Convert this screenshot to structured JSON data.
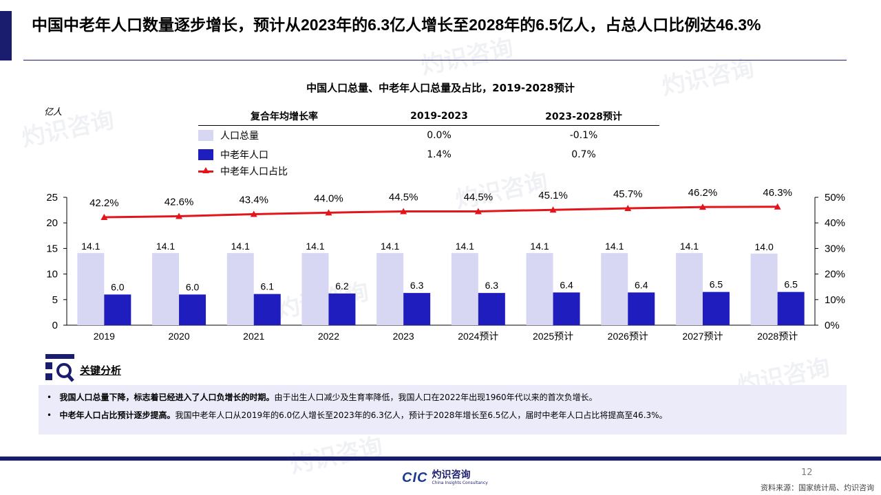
{
  "headline": "中国中老年人口数量逐步增长，预计从2023年的6.3亿人增长至2028年的6.5亿人，占总人口比例达46.3%",
  "chart_title": "中国人口总量、中老年人口总量及占比，2019-2028预计",
  "unit_label": "亿人",
  "cagr_table": {
    "header": [
      "复合年均增长率",
      "2019-2023",
      "2023-2028预计"
    ],
    "rows": [
      {
        "name": "人口总量",
        "v1": "0.0%",
        "v2": "-0.1%"
      },
      {
        "name": "中老年人口",
        "v1": "1.4%",
        "v2": "0.7%"
      },
      {
        "name": "中老年人口占比",
        "v1": "",
        "v2": ""
      }
    ]
  },
  "chart_data": {
    "type": "bar",
    "categories": [
      "2019",
      "2020",
      "2021",
      "2022",
      "2023",
      "2024预计",
      "2025预计",
      "2026预计",
      "2027预计",
      "2028预计"
    ],
    "series": [
      {
        "name": "人口总量",
        "type": "bar",
        "axis": "left",
        "color": "#d7d7f4",
        "values": [
          14.1,
          14.1,
          14.1,
          14.1,
          14.1,
          14.1,
          14.1,
          14.1,
          14.1,
          14.0
        ]
      },
      {
        "name": "中老年人口",
        "type": "bar",
        "axis": "left",
        "color": "#1f1dbd",
        "values": [
          6.0,
          6.0,
          6.1,
          6.2,
          6.3,
          6.3,
          6.4,
          6.4,
          6.5,
          6.5
        ]
      },
      {
        "name": "中老年人口占比",
        "type": "line",
        "axis": "right",
        "color": "#e3151b",
        "values": [
          42.2,
          42.6,
          43.4,
          44.0,
          44.5,
          44.5,
          45.1,
          45.7,
          46.2,
          46.3
        ]
      }
    ],
    "left_axis": {
      "ticks": [
        "0",
        "5",
        "10",
        "15",
        "20",
        "25"
      ],
      "ylim": [
        0,
        25
      ]
    },
    "right_axis": {
      "ticks": [
        "0%",
        "10%",
        "20%",
        "30%",
        "40%",
        "50%"
      ],
      "ylim": [
        0,
        50
      ]
    },
    "grid": false
  },
  "analysis": {
    "title": "关键分析",
    "bullets": [
      {
        "bold": "我国人口总量下降，标志着已经进入了人口负增长的时期。",
        "text": "由于出生人口减少及生育率降低，我国人口在2022年出现1960年代以来的首次负增长。"
      },
      {
        "bold": "中老年人口占比预计逐步提高。",
        "text": "我国中老年人口从2019年的6.0亿人增长至2023年的6.3亿人，预计于2028年增长至6.5亿人，届时中老年人口占比将提高至46.3%。"
      }
    ]
  },
  "footer": {
    "logo_mark": "CIC",
    "logo_cn": "灼识咨询",
    "logo_en": "China Insights Consultancy",
    "page_number": "12",
    "source": "资料来源：国家统计局、灼识咨询"
  },
  "watermark": {
    "cn": "灼识咨询",
    "en": "China Insights Consultancy"
  },
  "colors": {
    "navy": "#1a1d6e",
    "total_bar": "#d7d7f4",
    "mid_bar": "#1f1dbd",
    "line": "#e3151b"
  }
}
